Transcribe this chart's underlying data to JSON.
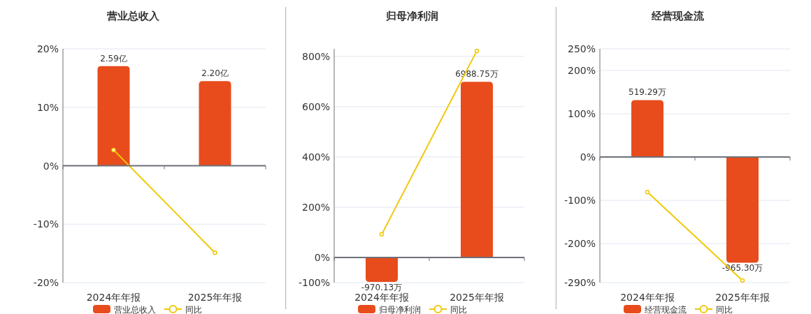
{
  "chart_data": [
    {
      "type": "bar",
      "title": "营业总收入",
      "categories": [
        "2024年年报",
        "2025年年报"
      ],
      "series": [
        {
          "name": "营业总收入",
          "axis": "y2",
          "color": "#e84c1c",
          "values": [
            2.59,
            2.2
          ],
          "value_labels": [
            "2.59亿",
            "2.20亿"
          ]
        },
        {
          "name": "同比",
          "type": "line",
          "color": "#f0c808",
          "marker": "circle",
          "values": [
            2.7,
            -14.9
          ]
        }
      ],
      "ylim": [
        -20,
        20
      ],
      "yticks": [
        {
          "value": -20,
          "label": "-20%"
        },
        {
          "value": -10,
          "label": "-10%"
        },
        {
          "value": 0,
          "label": "0%"
        },
        {
          "value": 10,
          "label": "10%"
        },
        {
          "value": 20,
          "label": "20%"
        }
      ],
      "y2lim": [
        -3.04,
        3.04
      ],
      "grid": "y",
      "legend": "bottom"
    },
    {
      "type": "bar",
      "title": "归母净利润",
      "categories": [
        "2024年年报",
        "2025年年报"
      ],
      "series": [
        {
          "name": "归母净利润",
          "axis": "y2",
          "color": "#e84c1c",
          "values": [
            -970.13,
            6988.75
          ],
          "value_labels": [
            "-970.13万",
            "6988.75万"
          ]
        },
        {
          "name": "同比",
          "type": "line",
          "color": "#f0c808",
          "marker": "circle",
          "values": [
            92,
            822
          ]
        }
      ],
      "ylim": [
        -100,
        830
      ],
      "yticks": [
        {
          "value": -100,
          "label": "-100%"
        },
        {
          "value": 0,
          "label": "0%"
        },
        {
          "value": 200,
          "label": "200%"
        },
        {
          "value": 400,
          "label": "400%"
        },
        {
          "value": 600,
          "label": "600%"
        },
        {
          "value": 800,
          "label": "800%"
        }
      ],
      "y2lim": [
        -1000,
        8300
      ],
      "grid": "y",
      "legend": "bottom"
    },
    {
      "type": "bar",
      "title": "经营现金流",
      "categories": [
        "2024年年报",
        "2025年年报"
      ],
      "series": [
        {
          "name": "经营现金流",
          "axis": "y2",
          "color": "#e84c1c",
          "values": [
            519.29,
            -965.3
          ],
          "value_labels": [
            "519.29万",
            "-965.30万"
          ]
        },
        {
          "name": "同比",
          "type": "line",
          "color": "#f0c808",
          "marker": "circle",
          "values": [
            -81,
            -285
          ]
        }
      ],
      "ylim": [
        -290,
        250
      ],
      "yticks": [
        {
          "value": -290,
          "label": "-290%"
        },
        {
          "value": -200,
          "label": "-200%"
        },
        {
          "value": -100,
          "label": "-100%"
        },
        {
          "value": 0,
          "label": "0%"
        },
        {
          "value": 100,
          "label": "100%"
        },
        {
          "value": 200,
          "label": "200%"
        },
        {
          "value": 250,
          "label": "250%"
        }
      ],
      "y2lim": [
        -1147,
        987
      ],
      "grid": "y",
      "legend": "bottom"
    }
  ]
}
